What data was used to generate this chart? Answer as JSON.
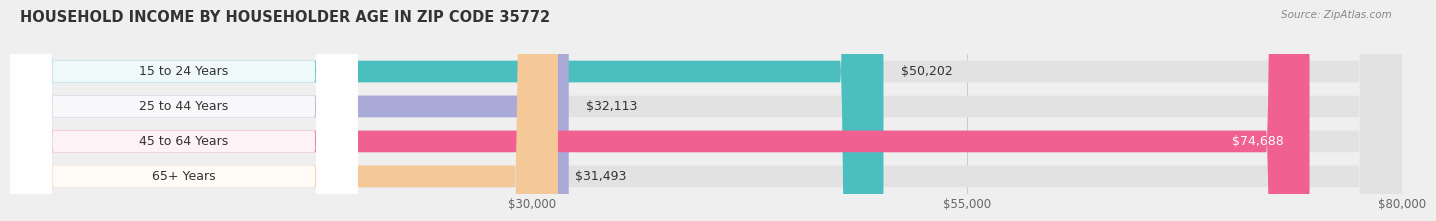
{
  "title": "HOUSEHOLD INCOME BY HOUSEHOLDER AGE IN ZIP CODE 35772",
  "source": "Source: ZipAtlas.com",
  "categories": [
    "15 to 24 Years",
    "25 to 44 Years",
    "45 to 64 Years",
    "65+ Years"
  ],
  "values": [
    50202,
    32113,
    74688,
    31493
  ],
  "bar_colors": [
    "#4BBFC0",
    "#AAAAD8",
    "#F06090",
    "#F5C897"
  ],
  "label_bg_colors": [
    "#4BBFC0",
    "#AAAAD8",
    "#F06090",
    "#F5C897"
  ],
  "bg_color": "#efefef",
  "bar_bg_color": "#e2e2e2",
  "xmin": 0,
  "xmax": 80000,
  "xticks": [
    30000,
    55000,
    80000
  ],
  "xtick_labels": [
    "$30,000",
    "$55,000",
    "$80,000"
  ],
  "value_labels": [
    "$50,202",
    "$32,113",
    "$74,688",
    "$31,493"
  ],
  "value_colors": [
    "#333333",
    "#333333",
    "#ffffff",
    "#333333"
  ]
}
